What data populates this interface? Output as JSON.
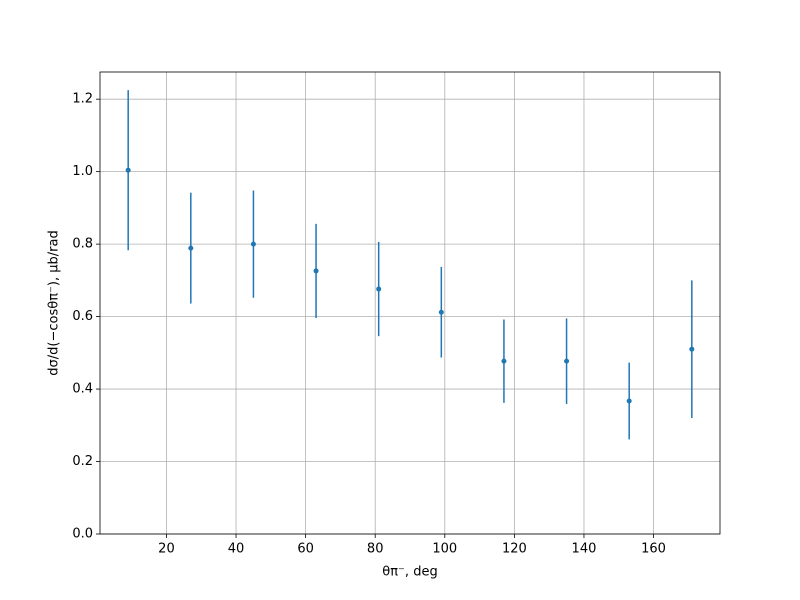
{
  "chart_data": {
    "type": "errorbar",
    "x_label": "θπ⁻, deg",
    "y_label": "dσ/d(−cosθπ⁻), μb/rad",
    "x": [
      9,
      27,
      45,
      63,
      81,
      99,
      117,
      135,
      153,
      171
    ],
    "series": [
      {
        "color": "#1f77b4",
        "values": [
          1.004,
          0.789,
          0.8,
          0.726,
          0.676,
          0.612,
          0.477,
          0.477,
          0.367,
          0.51
        ],
        "errors": [
          0.221,
          0.153,
          0.148,
          0.13,
          0.13,
          0.125,
          0.115,
          0.118,
          0.106,
          0.19
        ]
      }
    ],
    "xlim": [
      0.9,
      179.1
    ],
    "xticks": [
      20,
      40,
      60,
      80,
      100,
      120,
      140,
      160
    ],
    "ylim": [
      0,
      1.275
    ],
    "yticks": [
      {
        "value": 0,
        "label": "0.0"
      },
      0.2,
      0.4,
      0.6,
      0.8,
      {
        "value": 1,
        "label": "1.0"
      },
      1.2
    ],
    "grid": true
  }
}
